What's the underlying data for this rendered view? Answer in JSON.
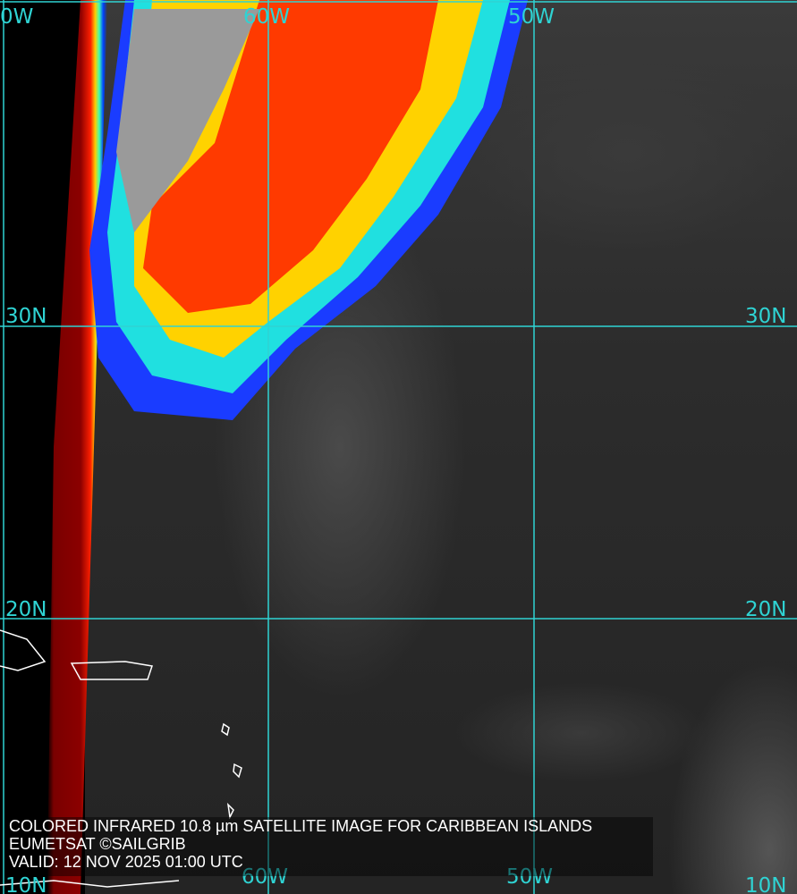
{
  "caption": {
    "line1": "COLORED INFRARED 10.8 µm SATELLITE IMAGE FOR CARIBBEAN ISLANDS",
    "line2": "EUMETSAT ©SAILGRIB",
    "line3": "VALID:  12 NOV 2025 01:00 UTC"
  },
  "grid_labels": {
    "top": [
      "0W",
      "60W",
      "50W"
    ],
    "left": [
      "30N",
      "20N",
      "10N"
    ],
    "right": [
      "30N",
      "20N",
      "10N"
    ],
    "bottom": [
      "60W",
      "50W"
    ]
  },
  "colors": {
    "grid": "#2fd3d3",
    "coast": "#ffffff",
    "cold_cloud": "#ff3000",
    "land_limb": "#8b0000"
  }
}
